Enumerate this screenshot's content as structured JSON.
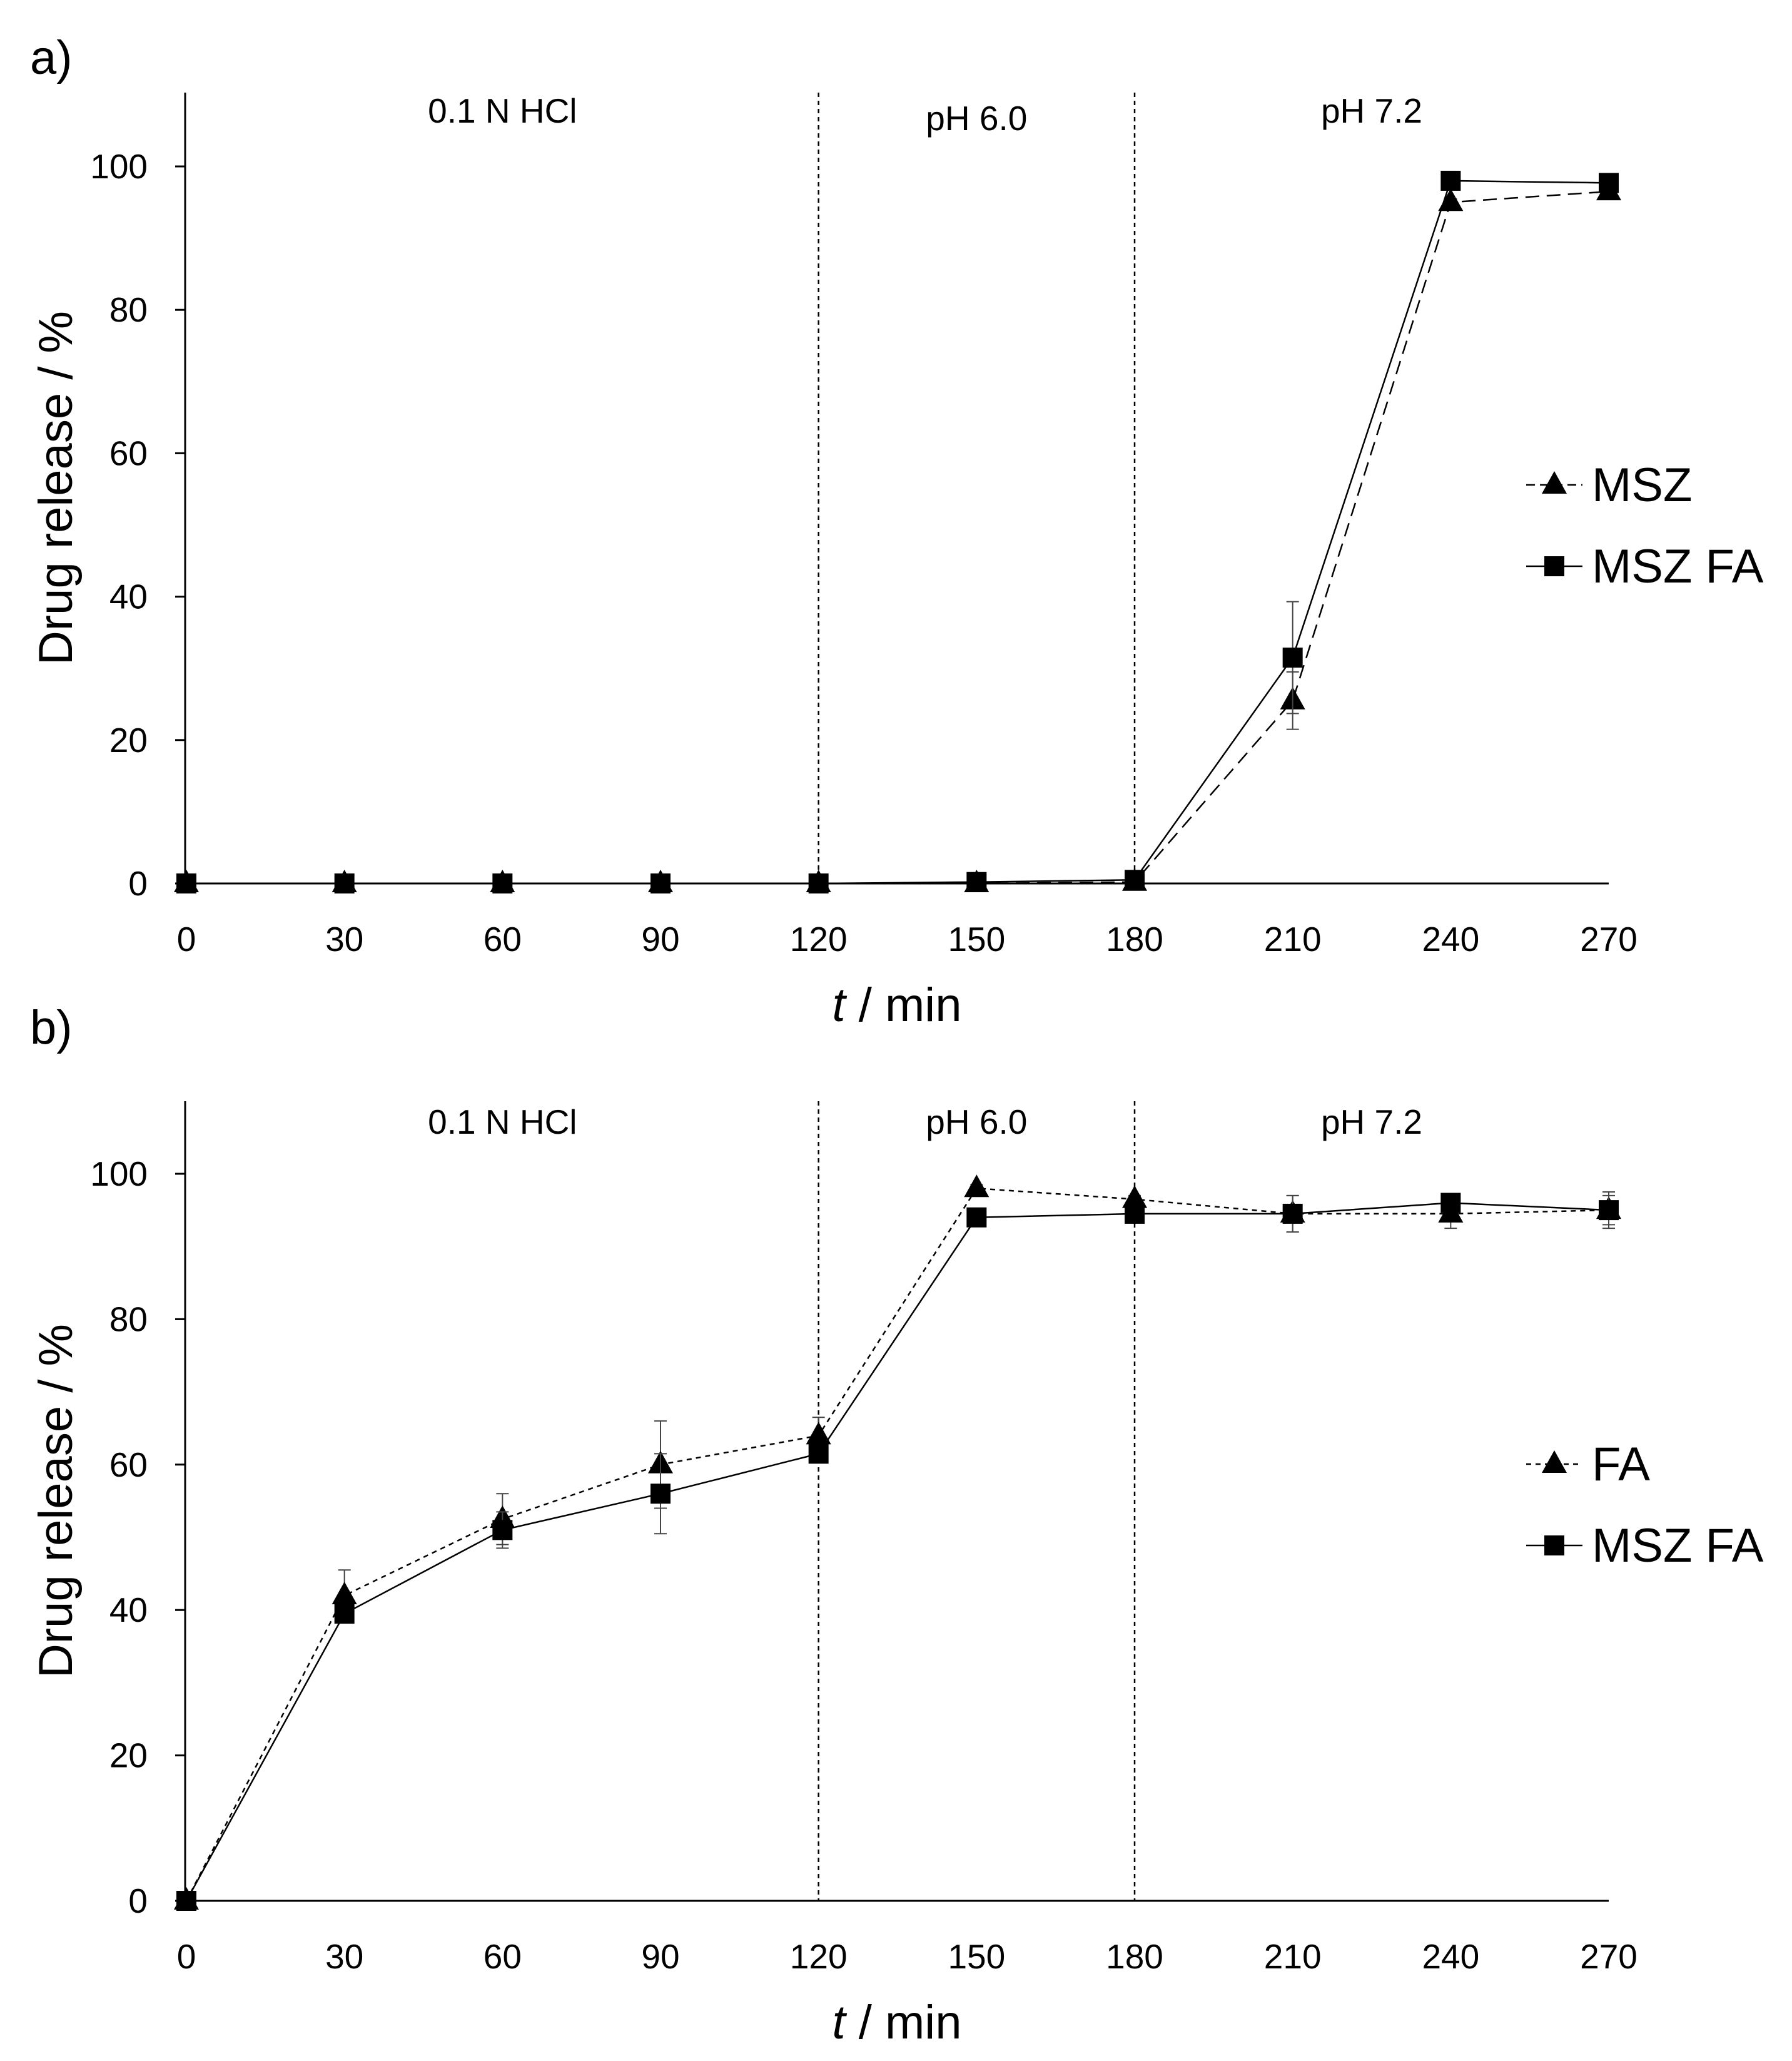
{
  "chart_data": [
    {
      "type": "line",
      "panel_label": "a)",
      "xlabel_italic": "t",
      "xlabel_rest": " / min",
      "ylabel": "Drug release / %",
      "xlim": [
        0,
        270
      ],
      "ylim": [
        0,
        110
      ],
      "x_ticks": [
        0,
        30,
        60,
        90,
        120,
        150,
        180,
        210,
        240,
        270
      ],
      "y_ticks": [
        0,
        20,
        40,
        60,
        80,
        100
      ],
      "grid": false,
      "legend_position": "right",
      "regions": [
        {
          "label": "0.1 N HCl",
          "from": 0,
          "to": 120
        },
        {
          "label": "pH 6.0",
          "from": 120,
          "to": 180
        },
        {
          "label": "pH 7.2",
          "from": 180,
          "to": 270
        }
      ],
      "region_boundaries": [
        120,
        180
      ],
      "x": [
        0,
        30,
        60,
        90,
        120,
        150,
        180,
        210,
        240,
        270
      ],
      "series": [
        {
          "name": "MSZ",
          "marker": "triangle",
          "line": "dashed",
          "values": [
            0,
            0,
            0,
            0,
            0,
            0,
            0.2,
            25.5,
            95,
            96.5
          ],
          "errors": [
            0,
            0,
            0,
            0,
            0,
            0,
            0,
            4,
            0.5,
            0.5
          ]
        },
        {
          "name": "MSZ FA",
          "marker": "square",
          "line": "solid",
          "values": [
            0,
            0,
            0,
            0,
            0,
            0.2,
            0.5,
            31.5,
            98,
            97.7
          ],
          "errors": [
            0,
            0,
            0,
            0,
            0,
            0,
            0,
            7.8,
            0.5,
            0.5
          ]
        }
      ]
    },
    {
      "type": "line",
      "panel_label": "b)",
      "xlabel_italic": "t",
      "xlabel_rest": " / min",
      "ylabel": "Drug release / %",
      "xlim": [
        0,
        270
      ],
      "ylim": [
        0,
        110
      ],
      "x_ticks": [
        0,
        30,
        60,
        90,
        120,
        150,
        180,
        210,
        240,
        270
      ],
      "y_ticks": [
        0,
        20,
        40,
        60,
        80,
        100
      ],
      "grid": false,
      "legend_position": "right",
      "regions": [
        {
          "label": "0.1 N HCl",
          "from": 0,
          "to": 120
        },
        {
          "label": "pH 6.0",
          "from": 120,
          "to": 180
        },
        {
          "label": "pH 7.2",
          "from": 180,
          "to": 270
        }
      ],
      "region_boundaries": [
        120,
        180
      ],
      "x": [
        0,
        30,
        60,
        90,
        120,
        150,
        180,
        210,
        240,
        270
      ],
      "series": [
        {
          "name": "FA",
          "marker": "triangle",
          "line": "dotted",
          "values": [
            0,
            42,
            52.5,
            60,
            64,
            98,
            96.5,
            94.5,
            94.5,
            95
          ],
          "errors": [
            0,
            3.5,
            3.5,
            6,
            2.5,
            0.5,
            0.5,
            2.5,
            2,
            2
          ]
        },
        {
          "name": "MSZ FA",
          "marker": "square",
          "line": "solid",
          "values": [
            0,
            39.5,
            51,
            56,
            61.5,
            94,
            94.5,
            94.5,
            96,
            95
          ],
          "errors": [
            0,
            0.5,
            2.5,
            5.5,
            1,
            0.5,
            0.5,
            2.5,
            0.5,
            2.5
          ]
        }
      ]
    }
  ]
}
